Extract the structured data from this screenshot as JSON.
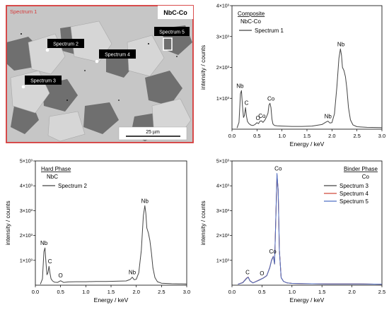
{
  "sem_panel": {
    "label_corner": "Spectrum 1",
    "title": "NbC-Co",
    "scale_bar": "25 µm",
    "spectrum_labels": [
      "Spectrum 2",
      "Spectrum 4",
      "Spectrum 3",
      "Spectrum 5"
    ],
    "colors": {
      "border": "#d63a3a",
      "grain": "#c6c6c6",
      "binder": "#6f6f6f",
      "label_bg": "#000000"
    }
  },
  "chart_data": [
    {
      "type": "line",
      "id": "composite",
      "legend_title": "Composite",
      "legend_subtitle": "NbC-Co",
      "series": [
        {
          "name": "Spectrum 1",
          "color": "#444444",
          "x": [
            0.1,
            0.14,
            0.17,
            0.19,
            0.21,
            0.23,
            0.25,
            0.27,
            0.29,
            0.31,
            0.34,
            0.38,
            0.42,
            0.46,
            0.5,
            0.53,
            0.56,
            0.59,
            0.62,
            0.66,
            0.69,
            0.72,
            0.74,
            0.76,
            0.78,
            0.8,
            0.82,
            0.85,
            0.9,
            1.0,
            1.2,
            1.4,
            1.6,
            1.8,
            1.88,
            1.92,
            1.96,
            2.0,
            2.05,
            2.1,
            2.14,
            2.17,
            2.19,
            2.21,
            2.24,
            2.27,
            2.3,
            2.33,
            2.37,
            2.42,
            2.5,
            2.7,
            3.0
          ],
          "y": [
            40,
            220,
            1150,
            1250,
            760,
            380,
            450,
            700,
            420,
            250,
            180,
            130,
            120,
            150,
            210,
            180,
            260,
            270,
            220,
            300,
            400,
            520,
            780,
            840,
            700,
            330,
            170,
            120,
            110,
            100,
            90,
            90,
            100,
            150,
            230,
            260,
            200,
            210,
            500,
            1400,
            2300,
            2600,
            2400,
            2000,
            1900,
            1700,
            1300,
            700,
            300,
            140,
            80,
            60,
            50
          ]
        }
      ],
      "xlabel": "Energy / keV",
      "ylabel": "intensity / counts",
      "xlim": [
        0,
        3.0
      ],
      "ylim": [
        0,
        4000
      ],
      "xticks": [
        0.0,
        0.5,
        1.0,
        1.5,
        2.0,
        2.5,
        3.0
      ],
      "xtick_labels": [
        "0.0",
        "0.5",
        "1.0",
        "1.5",
        "2.0",
        "2.5",
        "3.0"
      ],
      "ytick_labels": [
        "1×10³",
        "2×10³",
        "3×10³",
        "4×10³",
        "5×10³"
      ],
      "yticks": [
        1000,
        2000,
        3000,
        4000,
        5000
      ],
      "annotations": [
        {
          "text": "Nb",
          "x": 0.16,
          "y": 1250
        },
        {
          "text": "C",
          "x": 0.29,
          "y": 700
        },
        {
          "text": "O",
          "x": 0.52,
          "y": 210
        },
        {
          "text": "Co",
          "x": 0.6,
          "y": 280
        },
        {
          "text": "Co",
          "x": 0.78,
          "y": 840
        },
        {
          "text": "Nb",
          "x": 1.92,
          "y": 260
        },
        {
          "text": "Nb",
          "x": 2.18,
          "y": 2600
        }
      ]
    },
    {
      "type": "line",
      "id": "hard_phase",
      "legend_title": "Hard Phase",
      "legend_subtitle": "NbC",
      "series": [
        {
          "name": "Spectrum 2",
          "color": "#444444",
          "x": [
            0.1,
            0.14,
            0.17,
            0.19,
            0.21,
            0.23,
            0.25,
            0.27,
            0.29,
            0.31,
            0.34,
            0.38,
            0.44,
            0.5,
            0.56,
            0.65,
            0.8,
            1.0,
            1.2,
            1.4,
            1.6,
            1.8,
            1.88,
            1.92,
            1.96,
            2.0,
            2.05,
            2.1,
            2.14,
            2.17,
            2.19,
            2.21,
            2.24,
            2.27,
            2.3,
            2.33,
            2.37,
            2.42,
            2.5,
            2.7,
            3.0
          ],
          "y": [
            40,
            250,
            1350,
            1500,
            900,
            420,
            500,
            760,
            480,
            260,
            170,
            120,
            110,
            180,
            110,
            130,
            140,
            140,
            150,
            150,
            160,
            170,
            230,
            320,
            220,
            240,
            500,
            1400,
            2800,
            3200,
            2900,
            2300,
            2100,
            1800,
            1300,
            700,
            300,
            140,
            80,
            60,
            50
          ]
        }
      ],
      "xlabel": "Energy / keV",
      "ylabel": "intensity / counts",
      "xlim": [
        0,
        3.0
      ],
      "ylim": [
        0,
        5000
      ],
      "xticks": [
        0.0,
        0.5,
        1.0,
        1.5,
        2.0,
        2.5,
        3.0
      ],
      "xtick_labels": [
        "0.0",
        "0.5",
        "1.0",
        "1.5",
        "2.0",
        "2.5",
        "3.0"
      ],
      "ytick_labels": [
        "1×10³",
        "2×10³",
        "3×10³",
        "4×10³",
        "5×10³"
      ],
      "yticks": [
        1000,
        2000,
        3000,
        4000,
        5000
      ],
      "annotations": [
        {
          "text": "Nb",
          "x": 0.17,
          "y": 1500
        },
        {
          "text": "C",
          "x": 0.29,
          "y": 760
        },
        {
          "text": "O",
          "x": 0.5,
          "y": 200
        },
        {
          "text": "Nb",
          "x": 1.92,
          "y": 320
        },
        {
          "text": "Nb",
          "x": 2.17,
          "y": 3200
        }
      ]
    },
    {
      "type": "line",
      "id": "binder_phase",
      "legend_title": "Binder Phase",
      "legend_subtitle": "Co",
      "series": [
        {
          "name": "Spectrum 3",
          "color": "#444444",
          "x": [
            0.1,
            0.18,
            0.24,
            0.27,
            0.3,
            0.35,
            0.45,
            0.52,
            0.58,
            0.63,
            0.66,
            0.69,
            0.71,
            0.73,
            0.75,
            0.77,
            0.79,
            0.82,
            0.86,
            0.92,
            1.0,
            1.2,
            1.6,
            2.0,
            2.5
          ],
          "y": [
            40,
            100,
            260,
            320,
            170,
            90,
            200,
            280,
            380,
            700,
            1000,
            1150,
            850,
            2600,
            4400,
            3800,
            1400,
            300,
            150,
            90,
            70,
            60,
            50,
            50,
            40
          ]
        },
        {
          "name": "Spectrum 4",
          "color": "#d04b3a",
          "x": [
            0.1,
            0.18,
            0.24,
            0.27,
            0.3,
            0.35,
            0.45,
            0.52,
            0.58,
            0.63,
            0.66,
            0.69,
            0.71,
            0.73,
            0.75,
            0.77,
            0.79,
            0.82,
            0.86,
            0.92,
            1.0,
            1.2,
            1.6,
            2.0,
            2.5
          ],
          "y": [
            40,
            110,
            280,
            330,
            180,
            95,
            210,
            290,
            390,
            720,
            1020,
            1170,
            870,
            2650,
            4450,
            3850,
            1420,
            310,
            150,
            90,
            70,
            60,
            50,
            50,
            40
          ]
        },
        {
          "name": "Spectrum 5",
          "color": "#4f6fc4",
          "x": [
            0.1,
            0.18,
            0.24,
            0.27,
            0.3,
            0.35,
            0.45,
            0.52,
            0.58,
            0.63,
            0.66,
            0.69,
            0.71,
            0.73,
            0.75,
            0.77,
            0.79,
            0.82,
            0.86,
            0.92,
            1.0,
            1.2,
            1.6,
            2.0,
            2.5
          ],
          "y": [
            40,
            105,
            270,
            325,
            175,
            92,
            205,
            285,
            385,
            710,
            1010,
            1160,
            860,
            2620,
            4500,
            3820,
            1410,
            305,
            150,
            90,
            70,
            60,
            50,
            50,
            40
          ]
        }
      ],
      "xlabel": "Energy / keV",
      "ylabel": "intensity / counts",
      "xlim": [
        0,
        2.5
      ],
      "ylim": [
        0,
        5000
      ],
      "xticks": [
        0.0,
        0.5,
        1.0,
        1.5,
        2.0,
        2.5
      ],
      "xtick_labels": [
        "0.0",
        "0.5",
        "1.0",
        "1.5",
        "2.0",
        "2.5"
      ],
      "ytick_labels": [
        "1×10³",
        "2×10³",
        "3×10³",
        "4×10³",
        "5×10³"
      ],
      "yticks": [
        1000,
        2000,
        3000,
        4000,
        5000
      ],
      "annotations": [
        {
          "text": "C",
          "x": 0.26,
          "y": 320
        },
        {
          "text": "O",
          "x": 0.5,
          "y": 280
        },
        {
          "text": "Co",
          "x": 0.68,
          "y": 1170
        },
        {
          "text": "Co",
          "x": 0.77,
          "y": 4500
        }
      ]
    }
  ]
}
